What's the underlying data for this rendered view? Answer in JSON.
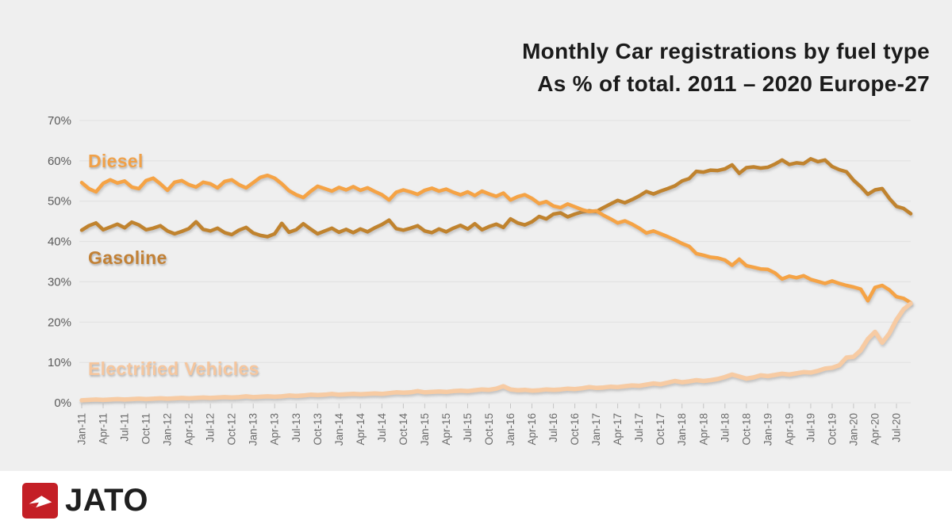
{
  "title": {
    "line1": "Monthly Car registrations by fuel type",
    "line2": "As % of total. 2011 – 2020 Europe-27"
  },
  "footer": {
    "logo_text": "JATO"
  },
  "colors": {
    "background": "#efefef",
    "gridline": "#e0e0e0",
    "axis_text": "#5a5a5a",
    "x_tick_text": "#6a6a6a",
    "title_text": "#1b1b1b",
    "logo_red": "#c41f26"
  },
  "chart_data": {
    "type": "line",
    "title": "Monthly Car registrations by fuel type — As % of total. 2011 – 2020 Europe-27",
    "xlabel": "",
    "ylabel": "",
    "ylim": [
      0,
      70
    ],
    "grid": "horizontal",
    "legend_position": "inline-labels",
    "y_tick_labels": [
      "0%",
      "10%",
      "20%",
      "30%",
      "40%",
      "50%",
      "60%",
      "70%"
    ],
    "x_label_step": 3,
    "x": [
      "Jan-11",
      "Feb-11",
      "Mar-11",
      "Apr-11",
      "May-11",
      "Jun-11",
      "Jul-11",
      "Aug-11",
      "Sep-11",
      "Oct-11",
      "Nov-11",
      "Dec-11",
      "Jan-12",
      "Feb-12",
      "Mar-12",
      "Apr-12",
      "May-12",
      "Jun-12",
      "Jul-12",
      "Aug-12",
      "Sep-12",
      "Oct-12",
      "Nov-12",
      "Dec-12",
      "Jan-13",
      "Feb-13",
      "Mar-13",
      "Apr-13",
      "May-13",
      "Jun-13",
      "Jul-13",
      "Aug-13",
      "Sep-13",
      "Oct-13",
      "Nov-13",
      "Dec-13",
      "Jan-14",
      "Feb-14",
      "Mar-14",
      "Apr-14",
      "May-14",
      "Jun-14",
      "Jul-14",
      "Aug-14",
      "Sep-14",
      "Oct-14",
      "Nov-14",
      "Dec-14",
      "Jan-15",
      "Feb-15",
      "Mar-15",
      "Apr-15",
      "May-15",
      "Jun-15",
      "Jul-15",
      "Aug-15",
      "Sep-15",
      "Oct-15",
      "Nov-15",
      "Dec-15",
      "Jan-16",
      "Feb-16",
      "Mar-16",
      "Apr-16",
      "May-16",
      "Jun-16",
      "Jul-16",
      "Aug-16",
      "Sep-16",
      "Oct-16",
      "Nov-16",
      "Dec-16",
      "Jan-17",
      "Feb-17",
      "Mar-17",
      "Apr-17",
      "May-17",
      "Jun-17",
      "Jul-17",
      "Aug-17",
      "Sep-17",
      "Oct-17",
      "Nov-17",
      "Dec-17",
      "Jan-18",
      "Feb-18",
      "Mar-18",
      "Apr-18",
      "May-18",
      "Jun-18",
      "Jul-18",
      "Aug-18",
      "Sep-18",
      "Oct-18",
      "Nov-18",
      "Dec-18",
      "Jan-19",
      "Feb-19",
      "Mar-19",
      "Apr-19",
      "May-19",
      "Jun-19",
      "Jul-19",
      "Aug-19",
      "Sep-19",
      "Oct-19",
      "Nov-19",
      "Dec-19",
      "Jan-20",
      "Feb-20",
      "Mar-20",
      "Apr-20",
      "May-20",
      "Jun-20",
      "Jul-20",
      "Aug-20",
      "Sep-20"
    ],
    "series": [
      {
        "key": "gasoline",
        "name": "Gasoline",
        "color": "#c0832f",
        "line_width": 4.5,
        "values": [
          42.8,
          43.9,
          44.6,
          42.9,
          43.6,
          44.3,
          43.4,
          44.8,
          44.1,
          42.9,
          43.3,
          43.9,
          42.6,
          41.9,
          42.5,
          43.2,
          44.9,
          43.0,
          42.6,
          43.3,
          42.2,
          41.7,
          42.8,
          43.5,
          42.1,
          41.5,
          41.2,
          41.9,
          44.5,
          42.3,
          42.9,
          44.4,
          43.1,
          41.9,
          42.6,
          43.3,
          42.3,
          43.0,
          42.2,
          43.1,
          42.4,
          43.4,
          44.2,
          45.3,
          43.2,
          42.8,
          43.3,
          43.9,
          42.6,
          42.2,
          43.1,
          42.4,
          43.3,
          44.0,
          43.1,
          44.4,
          42.9,
          43.7,
          44.3,
          43.5,
          45.6,
          44.6,
          44.1,
          44.9,
          46.2,
          45.6,
          46.8,
          47.1,
          46.1,
          46.8,
          47.3,
          47.6,
          47.4,
          48.4,
          49.3,
          50.2,
          49.6,
          50.4,
          51.3,
          52.4,
          51.8,
          52.5,
          53.1,
          53.8,
          55.0,
          55.6,
          57.4,
          57.2,
          57.7,
          57.6,
          58.0,
          59.0,
          56.9,
          58.3,
          58.5,
          58.2,
          58.4,
          59.2,
          60.2,
          59.1,
          59.5,
          59.3,
          60.5,
          59.8,
          60.2,
          58.6,
          57.8,
          57.3,
          55.2,
          53.6,
          51.7,
          52.8,
          53.1,
          50.7,
          48.7,
          48.2,
          46.9
        ]
      },
      {
        "key": "diesel",
        "name": "Diesel",
        "color": "#f5a344",
        "line_width": 4.5,
        "values": [
          54.6,
          53.1,
          52.3,
          54.4,
          55.3,
          54.5,
          55.0,
          53.5,
          53.1,
          55.1,
          55.7,
          54.3,
          52.7,
          54.7,
          55.1,
          54.1,
          53.5,
          54.7,
          54.3,
          53.3,
          54.9,
          55.3,
          54.1,
          53.3,
          54.6,
          55.9,
          56.4,
          55.7,
          54.3,
          52.6,
          51.6,
          50.9,
          52.4,
          53.7,
          53.1,
          52.5,
          53.4,
          52.8,
          53.6,
          52.7,
          53.3,
          52.4,
          51.6,
          50.3,
          52.2,
          52.8,
          52.3,
          51.7,
          52.7,
          53.2,
          52.5,
          53.0,
          52.2,
          51.6,
          52.3,
          51.4,
          52.5,
          51.8,
          51.2,
          52.0,
          50.3,
          51.1,
          51.6,
          50.7,
          49.4,
          49.9,
          48.8,
          48.4,
          49.3,
          48.6,
          47.9,
          47.4,
          47.6,
          46.5,
          45.6,
          44.6,
          45.1,
          44.3,
          43.3,
          42.1,
          42.6,
          41.9,
          41.2,
          40.4,
          39.5,
          38.8,
          37.0,
          36.6,
          36.1,
          35.9,
          35.4,
          34.1,
          35.6,
          34.0,
          33.6,
          33.2,
          33.1,
          32.2,
          30.7,
          31.4,
          31.0,
          31.5,
          30.6,
          30.1,
          29.6,
          30.2,
          29.6,
          29.1,
          28.7,
          28.2,
          25.3,
          28.6,
          29.1,
          28.0,
          26.3,
          25.9,
          24.8
        ]
      },
      {
        "key": "electrified",
        "name": "Electrified Vehicles",
        "color": "#f7cba3",
        "line_width": 5.5,
        "values": [
          0.6,
          0.7,
          0.8,
          0.7,
          0.8,
          0.9,
          0.8,
          0.9,
          1.0,
          0.9,
          1.0,
          1.1,
          1.0,
          1.1,
          1.2,
          1.1,
          1.2,
          1.3,
          1.2,
          1.3,
          1.4,
          1.3,
          1.4,
          1.6,
          1.4,
          1.5,
          1.6,
          1.5,
          1.6,
          1.8,
          1.7,
          1.8,
          2.0,
          1.9,
          2.0,
          2.2,
          2.0,
          2.1,
          2.2,
          2.1,
          2.2,
          2.3,
          2.2,
          2.4,
          2.6,
          2.5,
          2.6,
          2.9,
          2.6,
          2.7,
          2.8,
          2.7,
          2.9,
          3.0,
          2.9,
          3.1,
          3.3,
          3.2,
          3.5,
          4.1,
          3.3,
          3.1,
          3.2,
          3.0,
          3.1,
          3.3,
          3.2,
          3.3,
          3.5,
          3.4,
          3.6,
          3.9,
          3.7,
          3.8,
          4.0,
          3.9,
          4.1,
          4.3,
          4.2,
          4.5,
          4.8,
          4.6,
          5.0,
          5.4,
          5.1,
          5.3,
          5.6,
          5.4,
          5.6,
          5.9,
          6.4,
          7.0,
          6.5,
          6.0,
          6.3,
          6.8,
          6.6,
          6.9,
          7.2,
          7.0,
          7.3,
          7.6,
          7.5,
          7.9,
          8.5,
          8.7,
          9.3,
          11.2,
          11.4,
          13.0,
          15.8,
          17.6,
          14.9,
          17.2,
          20.6,
          23.2,
          24.6
        ]
      }
    ],
    "inline_labels": [
      {
        "text": "Diesel",
        "color": "#f0a149"
      },
      {
        "text": "Gasoline",
        "color": "#c28136"
      },
      {
        "text": "Electrified Vehicles",
        "color": "#f5c69e"
      }
    ]
  }
}
